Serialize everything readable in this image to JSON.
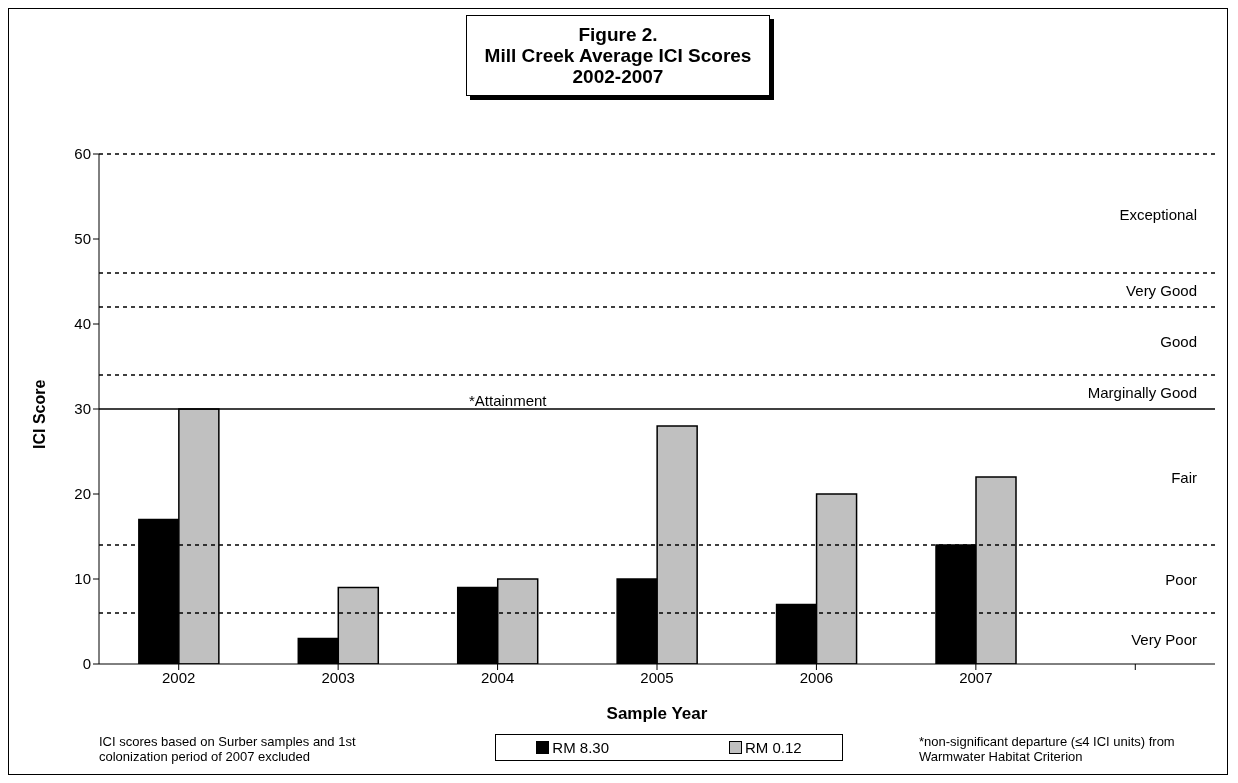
{
  "chart_data": {
    "type": "bar",
    "title": "Figure 2.\nMill Creek Average ICI Scores\n2002-2007",
    "categories": [
      "2002",
      "2003",
      "2004",
      "2005",
      "2006",
      "2007",
      null
    ],
    "series": [
      {
        "name": "RM 8.30",
        "color": "#000000",
        "values": [
          17,
          3,
          9,
          10,
          7,
          14,
          null
        ]
      },
      {
        "name": "RM 0.12",
        "color": "#c0c0c0",
        "values": [
          30,
          9,
          10,
          28,
          20,
          22,
          null
        ]
      }
    ],
    "xlabel": "Sample Year",
    "ylabel": "ICI Score",
    "ylim": [
      0,
      60
    ],
    "yticks": [
      0,
      10,
      20,
      30,
      40,
      50,
      60
    ],
    "ref_lines": [
      {
        "axis": "y",
        "value": 60,
        "line_style": "dashed"
      },
      {
        "axis": "y",
        "value": 46,
        "line_style": "dashed"
      },
      {
        "axis": "y",
        "value": 42,
        "line_style": "dashed"
      },
      {
        "axis": "y",
        "value": 34,
        "line_style": "dashed"
      },
      {
        "axis": "y",
        "value": 30,
        "line_style": "solid",
        "label": "*Attainment"
      },
      {
        "axis": "y",
        "value": 14,
        "line_style": "dashed"
      },
      {
        "axis": "y",
        "value": 6,
        "line_style": "dashed"
      }
    ],
    "legend": "bottom",
    "annotations": [
      "Exceptional",
      "Very Good",
      "Good",
      "Marginally Good",
      "Fair",
      "Poor",
      "Very Poor",
      "ICI scores based on Surber samples and 1st colonization period of 2007 excluded",
      "*non-significant departure (≤4 ICI units) from Warmwater Habitat Criterion"
    ]
  }
}
